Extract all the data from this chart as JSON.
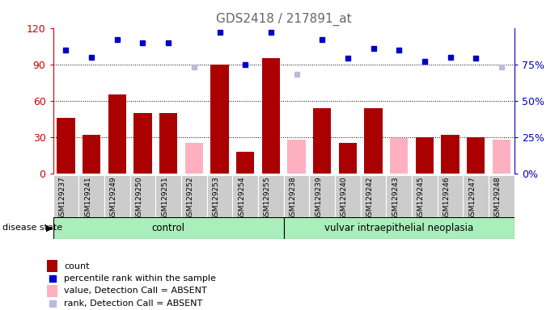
{
  "title": "GDS2418 / 217891_at",
  "samples": [
    "GSM129237",
    "GSM129241",
    "GSM129249",
    "GSM129250",
    "GSM129251",
    "GSM129252",
    "GSM129253",
    "GSM129254",
    "GSM129255",
    "GSM129238",
    "GSM129239",
    "GSM129240",
    "GSM129242",
    "GSM129243",
    "GSM129245",
    "GSM129246",
    "GSM129247",
    "GSM129248"
  ],
  "count_values": [
    46,
    32,
    65,
    50,
    50,
    null,
    90,
    18,
    95,
    null,
    54,
    25,
    54,
    null,
    30,
    32,
    30,
    null
  ],
  "absent_values": [
    null,
    null,
    null,
    null,
    null,
    25,
    null,
    null,
    null,
    28,
    null,
    null,
    null,
    29,
    null,
    null,
    null,
    28
  ],
  "percentile_values": [
    85,
    80,
    92,
    90,
    90,
    null,
    97,
    75,
    97,
    null,
    92,
    79,
    86,
    85,
    77,
    80,
    79,
    null
  ],
  "absent_rank_values": [
    null,
    null,
    null,
    null,
    null,
    73,
    null,
    null,
    null,
    68,
    null,
    null,
    null,
    null,
    null,
    null,
    null,
    73
  ],
  "bar_color_present": "#aa0000",
  "bar_color_absent": "#ffb0c0",
  "dot_color_present": "#0000cc",
  "dot_color_absent": "#bbbbdd",
  "group_bg_color": "#aaeebb",
  "xticklabel_area_color": "#cccccc",
  "title_color": "#666666",
  "ylabel_left_color": "#cc0000",
  "ylabel_right_color": "#0000bb",
  "control_label": "control",
  "disease_label": "vulvar intraepithelial neoplasia",
  "group_label": "disease state",
  "legend_items": [
    {
      "color": "#aa0000",
      "type": "rect",
      "label": "count"
    },
    {
      "color": "#0000cc",
      "type": "square",
      "label": "percentile rank within the sample"
    },
    {
      "color": "#ffb0c0",
      "type": "rect",
      "label": "value, Detection Call = ABSENT"
    },
    {
      "color": "#bbbbdd",
      "type": "square",
      "label": "rank, Detection Call = ABSENT"
    }
  ]
}
